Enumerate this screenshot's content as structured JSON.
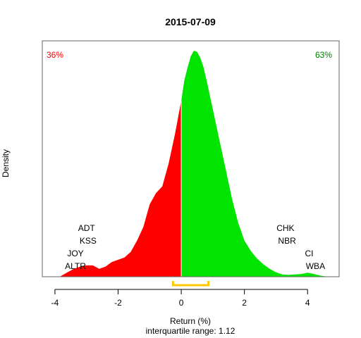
{
  "chart_data": {
    "type": "area",
    "title": "2015-07-09",
    "xlabel": "Return (%)",
    "ylabel": "Density",
    "subtitle": "interquartile range: 1.12",
    "xlim": [
      -4.4,
      5.0
    ],
    "ylim": [
      0,
      1.0
    ],
    "x_ticks": [
      "-4",
      "-2",
      "0",
      "2",
      "4"
    ],
    "x_tick_values": [
      -4,
      -2,
      0,
      2,
      4
    ],
    "split_at": 0,
    "left_share": "36%",
    "right_share": "63%",
    "colors": {
      "negative": "#ff0000",
      "positive": "#00e400",
      "left_pct": "#ff0000",
      "right_pct": "#008000",
      "iqr": "#ffc800"
    },
    "iqr": [
      -0.26,
      0.86
    ],
    "density": {
      "x": [
        -3.85,
        -3.6,
        -3.4,
        -3.2,
        -3.0,
        -2.8,
        -2.6,
        -2.4,
        -2.2,
        -2.0,
        -1.8,
        -1.6,
        -1.4,
        -1.2,
        -1.0,
        -0.8,
        -0.6,
        -0.4,
        -0.2,
        0.0,
        0.1,
        0.2,
        0.3,
        0.4,
        0.5,
        0.6,
        0.7,
        0.8,
        1.0,
        1.2,
        1.4,
        1.6,
        1.8,
        2.0,
        2.2,
        2.4,
        2.6,
        2.8,
        3.0,
        3.2,
        3.4,
        3.6,
        3.8,
        4.0,
        4.2,
        4.4,
        4.65
      ],
      "y": [
        0.0,
        0.02,
        0.035,
        0.045,
        0.05,
        0.05,
        0.035,
        0.045,
        0.065,
        0.075,
        0.085,
        0.11,
        0.16,
        0.22,
        0.32,
        0.37,
        0.4,
        0.5,
        0.63,
        0.78,
        0.87,
        0.925,
        0.975,
        1.0,
        0.995,
        0.97,
        0.93,
        0.87,
        0.74,
        0.61,
        0.48,
        0.35,
        0.24,
        0.16,
        0.115,
        0.08,
        0.055,
        0.035,
        0.02,
        0.01,
        0.008,
        0.01,
        0.012,
        0.018,
        0.012,
        0.005,
        0.0
      ]
    },
    "tickers": [
      {
        "name": "ADT",
        "x": -3.0,
        "row": 4
      },
      {
        "name": "KSS",
        "x": -2.95,
        "row": 3
      },
      {
        "name": "JOY",
        "x": -3.35,
        "row": 2
      },
      {
        "name": "ALTR",
        "x": -3.35,
        "row": 1
      },
      {
        "name": "CHK",
        "x": 3.3,
        "row": 4
      },
      {
        "name": "NBR",
        "x": 3.35,
        "row": 3
      },
      {
        "name": "CI",
        "x": 4.05,
        "row": 2
      },
      {
        "name": "WBA",
        "x": 4.25,
        "row": 1
      }
    ]
  }
}
